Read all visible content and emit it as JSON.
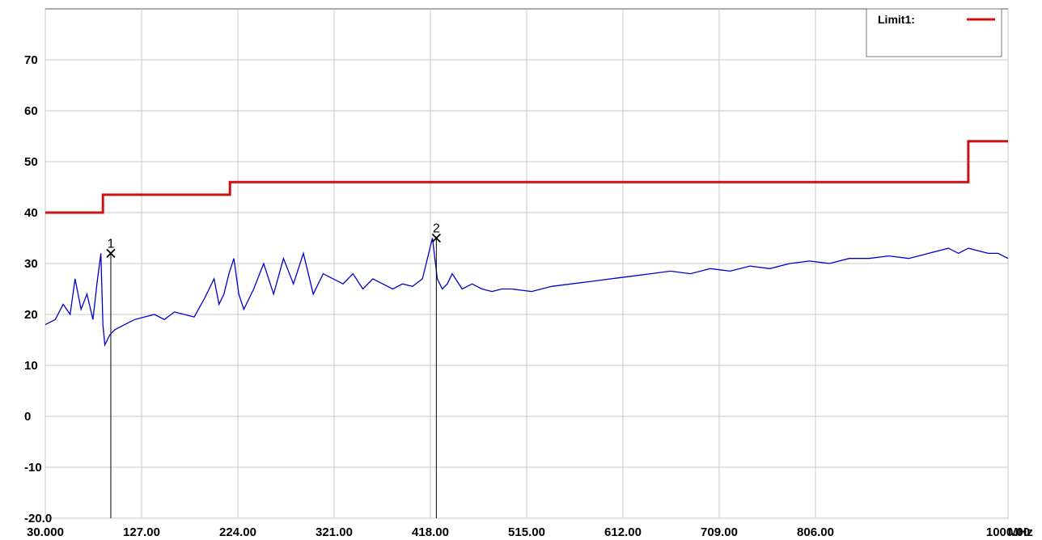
{
  "chart_data": {
    "type": "line",
    "x_unit": "MHz",
    "xlim": [
      30,
      1000
    ],
    "ylim": [
      -20,
      80
    ],
    "grid": true,
    "legend_position": "top-right",
    "x_ticks": [
      {
        "value": 30,
        "label": "30.000"
      },
      {
        "value": 127,
        "label": "127.00"
      },
      {
        "value": 224,
        "label": "224.00"
      },
      {
        "value": 321,
        "label": "321.00"
      },
      {
        "value": 418,
        "label": "418.00"
      },
      {
        "value": 515,
        "label": "515.00"
      },
      {
        "value": 612,
        "label": "612.00"
      },
      {
        "value": 709,
        "label": "709.00"
      },
      {
        "value": 806,
        "label": "806.00"
      },
      {
        "value": 1000,
        "label": "1000.00"
      }
    ],
    "y_ticks": [
      {
        "value": 70,
        "label": "70"
      },
      {
        "value": 60,
        "label": "60"
      },
      {
        "value": 50,
        "label": "50"
      },
      {
        "value": 40,
        "label": "40"
      },
      {
        "value": 30,
        "label": "30"
      },
      {
        "value": 20,
        "label": "20"
      },
      {
        "value": 10,
        "label": "10"
      },
      {
        "value": 0,
        "label": "0"
      },
      {
        "value": -10,
        "label": "-10"
      },
      {
        "value": -20,
        "label": "-20.0"
      }
    ],
    "series": [
      {
        "name": "Limit1:",
        "color": "#cc1111",
        "step": true,
        "x": [
          30,
          88,
          88,
          216,
          216,
          960,
          960,
          1000
        ],
        "y": [
          40,
          40,
          43.5,
          43.5,
          46,
          46,
          54,
          54
        ]
      },
      {
        "color": "#0000cc",
        "x": [
          30,
          40,
          48,
          55,
          60,
          66,
          72,
          78,
          82,
          86,
          88,
          90,
          95,
          100,
          110,
          120,
          130,
          140,
          150,
          160,
          170,
          180,
          190,
          200,
          205,
          210,
          215,
          220,
          225,
          230,
          240,
          250,
          260,
          270,
          280,
          290,
          300,
          310,
          320,
          330,
          340,
          350,
          360,
          370,
          380,
          390,
          400,
          410,
          420,
          425,
          430,
          435,
          440,
          450,
          460,
          470,
          480,
          490,
          500,
          520,
          540,
          560,
          580,
          600,
          620,
          640,
          660,
          680,
          700,
          720,
          740,
          760,
          780,
          800,
          820,
          840,
          860,
          880,
          900,
          920,
          940,
          950,
          960,
          970,
          980,
          990,
          1000
        ],
        "y": [
          18,
          19,
          22,
          20,
          27,
          21,
          24,
          19,
          26,
          32,
          18,
          14,
          16,
          17,
          18,
          19,
          19.5,
          20,
          19,
          20.5,
          20,
          19.5,
          23,
          27,
          22,
          24,
          28,
          31,
          24,
          21,
          25,
          30,
          24,
          31,
          26,
          32,
          24,
          28,
          27,
          26,
          28,
          25,
          27,
          26,
          25,
          26,
          25.5,
          27,
          35,
          27,
          25,
          26,
          28,
          25,
          26,
          25,
          24.5,
          25,
          25,
          24.5,
          25.5,
          26,
          26.5,
          27,
          27.5,
          28,
          28.5,
          28,
          29,
          28.5,
          29.5,
          29,
          30,
          30.5,
          30,
          31,
          31,
          31.5,
          31,
          32,
          33,
          32,
          33,
          32.5,
          32,
          32,
          31
        ]
      }
    ],
    "markers": [
      {
        "label": "1",
        "x": 96,
        "y": 32
      },
      {
        "label": "2",
        "x": 424,
        "y": 35
      }
    ]
  },
  "x_tick_trailing_unit": "MHz"
}
